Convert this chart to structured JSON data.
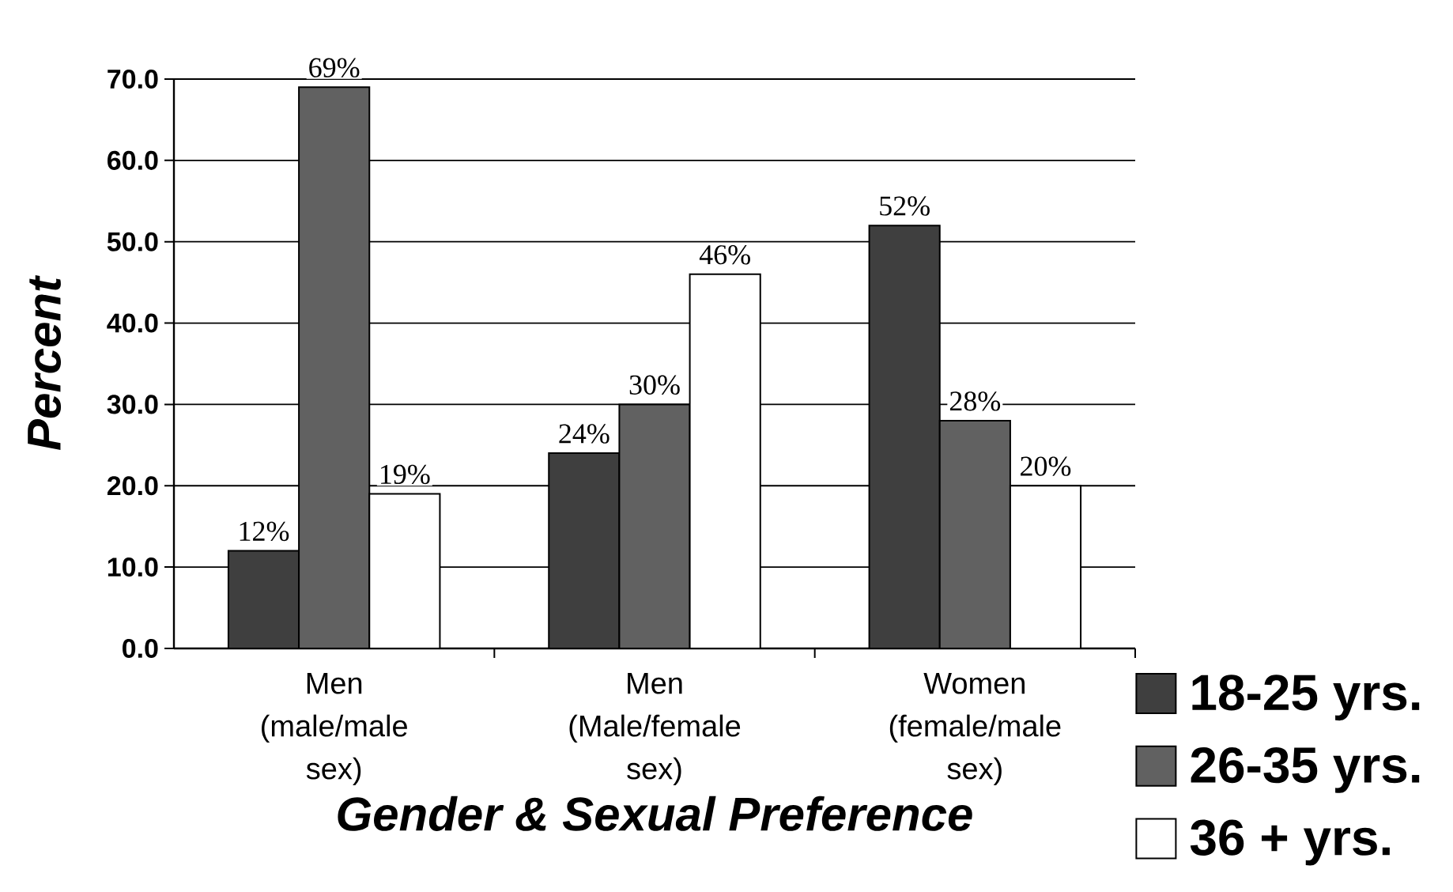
{
  "chart_data": {
    "type": "bar",
    "xlabel": "Gender & Sexual Preference",
    "ylabel": "Percent",
    "categories": [
      "Men (male/male sex)",
      "Men (Male/female sex)",
      "Women (female/male sex)"
    ],
    "series": [
      {
        "name": "18-25 yrs.",
        "color": "#3f3f3f",
        "values": [
          12,
          24,
          52
        ],
        "value_labels": [
          "12%",
          "24%",
          "52%"
        ]
      },
      {
        "name": "26-35 yrs.",
        "color": "#616161",
        "values": [
          69,
          30,
          28
        ],
        "value_labels": [
          "69%",
          "30%",
          "28%"
        ]
      },
      {
        "name": "36 + yrs.",
        "color": "#ffffff",
        "values": [
          19,
          46,
          20
        ],
        "value_labels": [
          "19%",
          "46%",
          "20%"
        ]
      }
    ],
    "ylim": [
      0,
      70
    ],
    "yticks": [
      {
        "value": 0,
        "label": "0.0"
      },
      {
        "value": 10,
        "label": "10.0"
      },
      {
        "value": 20,
        "label": "20.0"
      },
      {
        "value": 30,
        "label": "30.0"
      },
      {
        "value": 40,
        "label": "40.0"
      },
      {
        "value": 50,
        "label": "50.0"
      },
      {
        "value": 60,
        "label": "60.0"
      },
      {
        "value": 70,
        "label": "70.0"
      }
    ],
    "grid": "y",
    "legend": "bottom right"
  }
}
